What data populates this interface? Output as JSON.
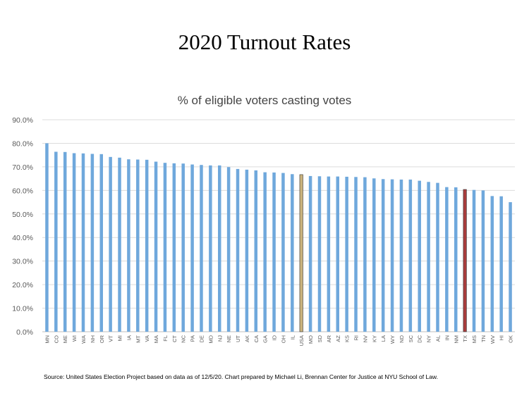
{
  "title": "2020 Turnout Rates",
  "source": "Source: United States Election Project based on data as of 12/5/20. Chart prepared by Michael Li, Brennan Center for Justice at NYU School of Law.",
  "chart_data": {
    "type": "bar",
    "title": "% of eligible voters casting votes",
    "xlabel": "",
    "ylabel": "",
    "ylim": [
      0,
      90
    ],
    "y_ticks": [
      "0.0%",
      "10.0%",
      "20.0%",
      "30.0%",
      "40.0%",
      "50.0%",
      "60.0%",
      "70.0%",
      "80.0%",
      "90.0%"
    ],
    "grid": true,
    "colors": {
      "default": "#6fa8dc",
      "USA": "#c9b27c",
      "TX": "#a83c3c"
    },
    "categories": [
      "MN",
      "CO",
      "ME",
      "WI",
      "WA",
      "NH",
      "OR",
      "VT",
      "MI",
      "IA",
      "MT",
      "VA",
      "MA",
      "FL",
      "CT",
      "NC",
      "PA",
      "DE",
      "MD",
      "NJ",
      "NE",
      "UT",
      "AK",
      "CA",
      "GA",
      "ID",
      "OH",
      "IL",
      "USA",
      "MO",
      "SD",
      "AR",
      "AZ",
      "KS",
      "RI",
      "NV",
      "KY",
      "LA",
      "WY",
      "ND",
      "SC",
      "DC",
      "NY",
      "AL",
      "IN",
      "NM",
      "TX",
      "MS",
      "TN",
      "WV",
      "HI",
      "OK"
    ],
    "values": [
      80.0,
      76.4,
      76.3,
      75.8,
      75.7,
      75.5,
      75.4,
      74.2,
      73.9,
      73.2,
      73.1,
      73.0,
      72.2,
      71.7,
      71.5,
      71.4,
      71.0,
      70.8,
      70.6,
      70.6,
      69.9,
      69.1,
      68.8,
      68.5,
      67.7,
      67.6,
      67.4,
      66.9,
      66.7,
      66.1,
      66.0,
      65.9,
      65.9,
      65.8,
      65.7,
      65.6,
      65.1,
      64.8,
      64.7,
      64.6,
      64.6,
      64.1,
      63.6,
      63.2,
      61.4,
      61.3,
      60.4,
      60.2,
      60.0,
      57.6,
      57.5,
      55.0
    ]
  }
}
